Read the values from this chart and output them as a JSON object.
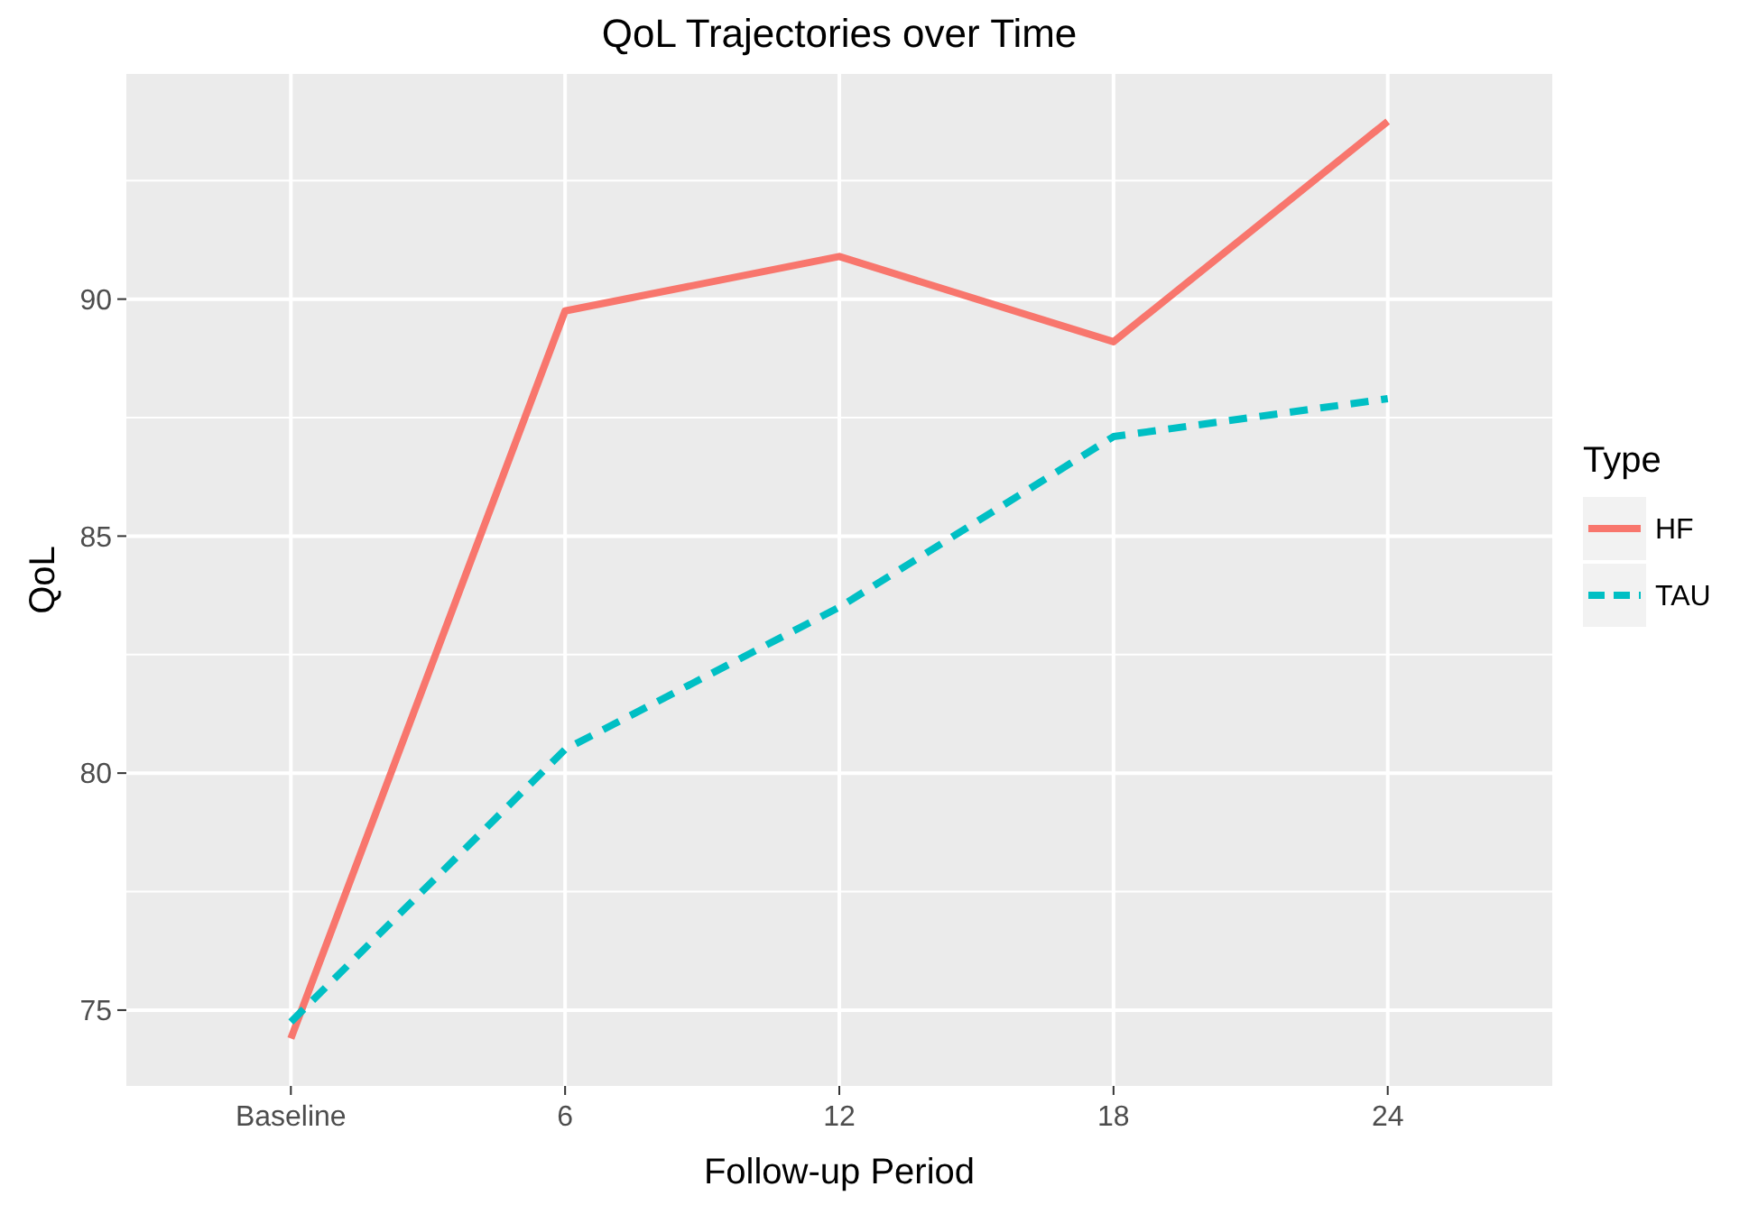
{
  "chart_data": {
    "type": "line",
    "title": "QoL Trajectories over Time",
    "xlabel": "Follow-up Period",
    "ylabel": "QoL",
    "legend_title": "Type",
    "categories": [
      "Baseline",
      "6",
      "12",
      "18",
      "24"
    ],
    "series": [
      {
        "name": "HF",
        "color": "#f8766d",
        "line_style": "solid",
        "values": [
          74.4,
          89.75,
          90.9,
          89.1,
          93.75
        ]
      },
      {
        "name": "TAU",
        "color": "#00bfc4",
        "line_style": "dashed",
        "values": [
          74.75,
          80.5,
          83.5,
          87.1,
          87.9
        ]
      }
    ],
    "ylim": [
      73.4,
      94.75
    ],
    "yticks": [
      75,
      80,
      85,
      90
    ],
    "grid": true,
    "legend": "right"
  }
}
